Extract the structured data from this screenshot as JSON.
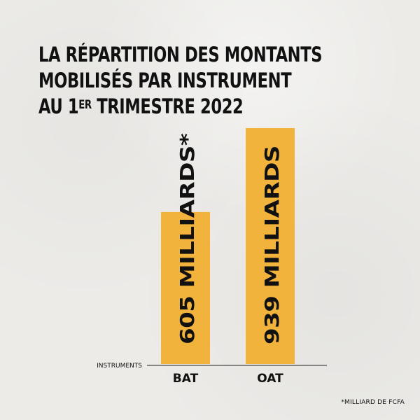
{
  "title": {
    "line1": "LA RÉPARTITION DES MONTANTS",
    "line2": "MOBILISÉS PAR INSTRUMENT",
    "line3_prefix": "AU 1",
    "line3_sup": "ER",
    "line3_suffix": " TRIMESTRE 2022"
  },
  "footnote": "*MILLIARD DE FCFA",
  "colors": {
    "bar": "#f2b33d",
    "axis": "#222222",
    "text": "#111111"
  },
  "chart_data": {
    "type": "bar",
    "categories": [
      "BAT",
      "OAT"
    ],
    "values": [
      605,
      939
    ],
    "data_labels": [
      "605 MILLIARDS*",
      "939 MILLIARDS"
    ],
    "xlabel": "INSTRUMENTS",
    "ylabel": "",
    "ylim": [
      0,
      939
    ],
    "grid": false,
    "legend": "none"
  }
}
